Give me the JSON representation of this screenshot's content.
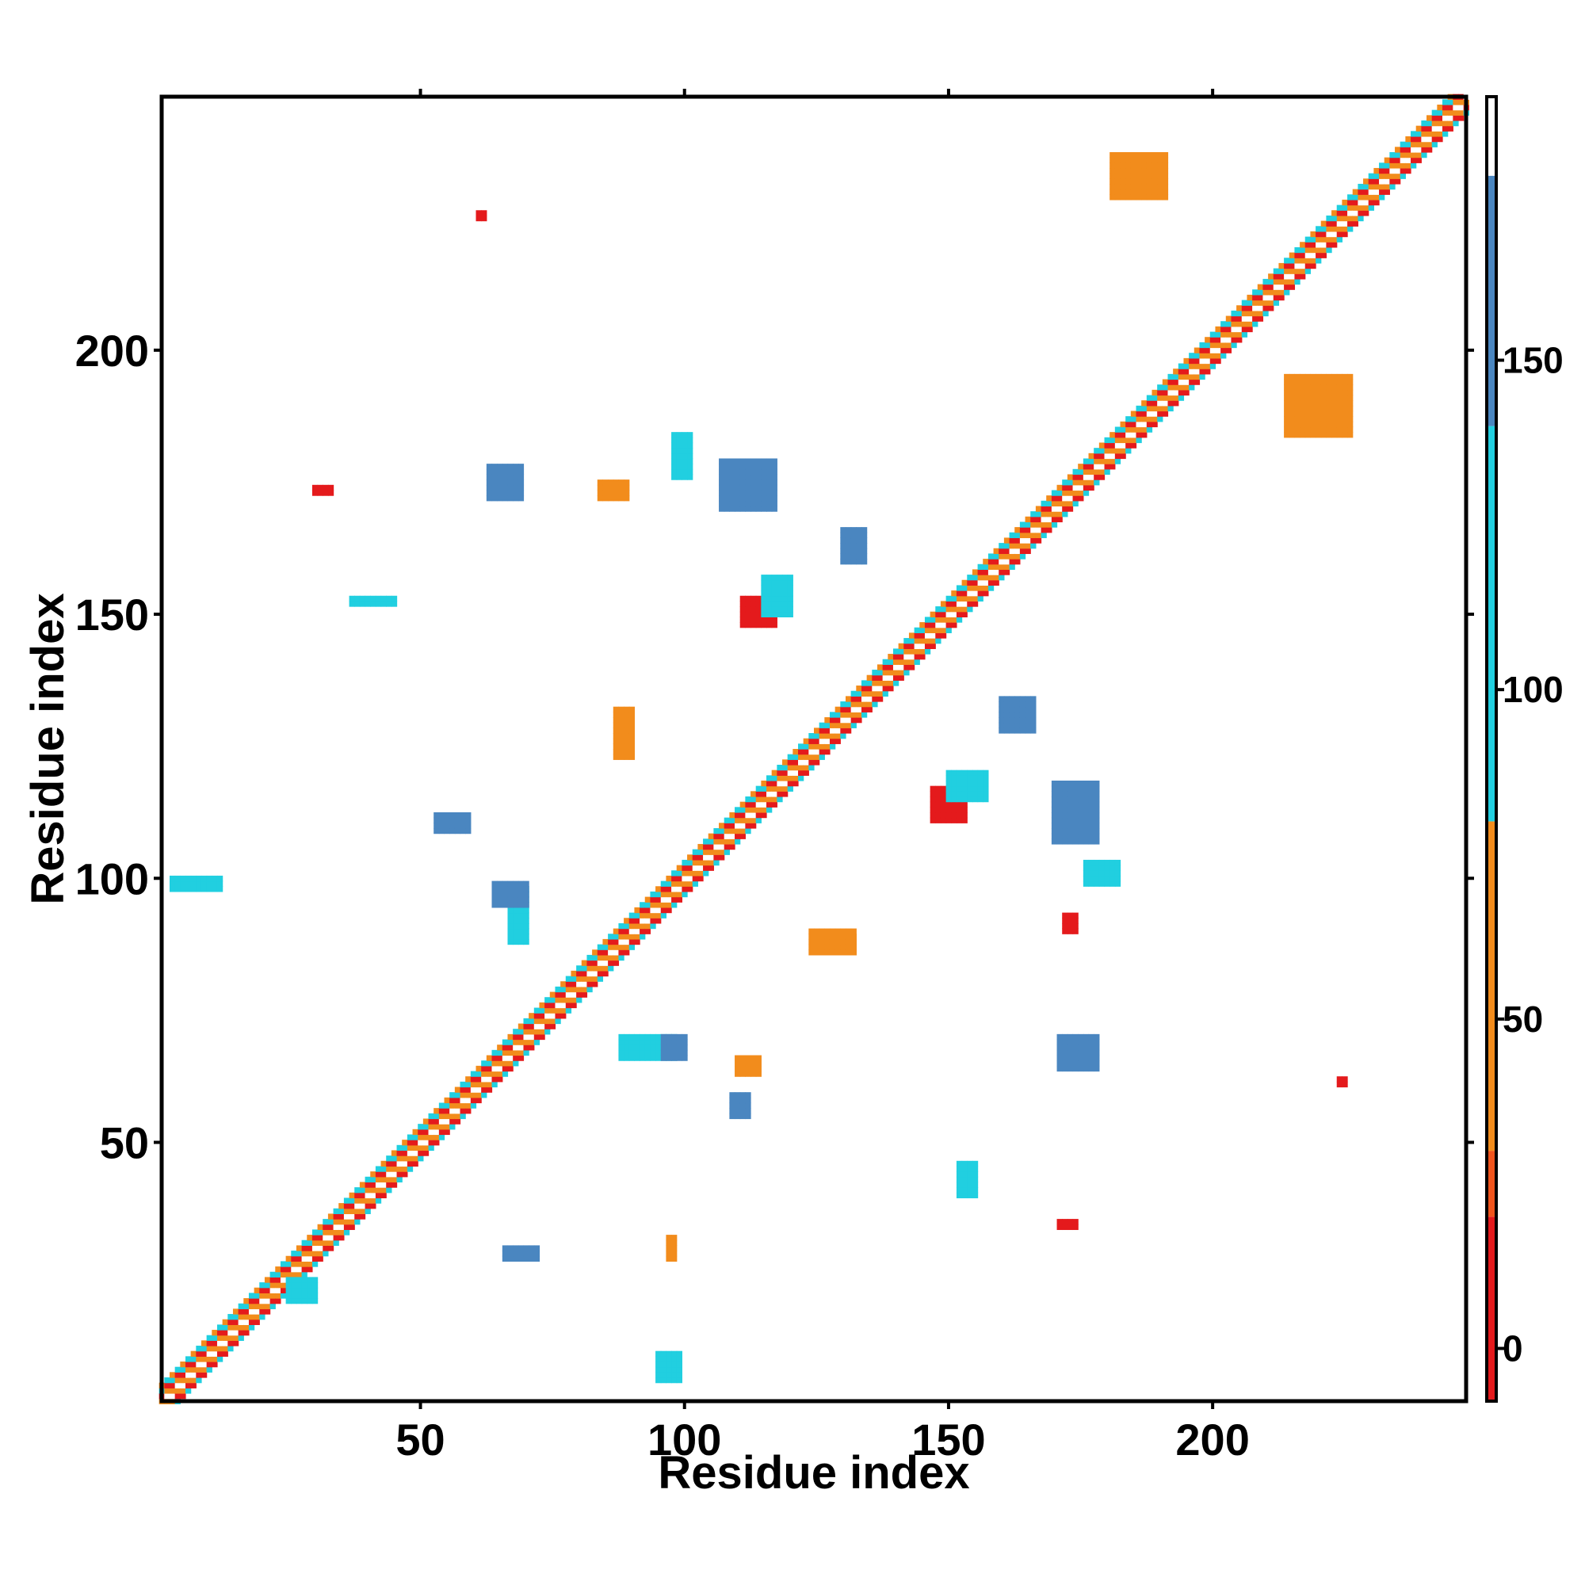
{
  "chart_data": {
    "type": "heatmap",
    "title": "",
    "xlabel": "Residue index",
    "ylabel": "Residue index",
    "xlim": [
      1,
      248
    ],
    "ylim": [
      1,
      248
    ],
    "x_ticks": [
      50,
      100,
      150,
      200
    ],
    "y_ticks": [
      50,
      100,
      150,
      200
    ],
    "x_tick_labels": [
      "50",
      "100",
      "150",
      "200"
    ],
    "y_tick_labels": [
      "50",
      "100",
      "150",
      "200"
    ],
    "grid": false,
    "colorbar": {
      "range": [
        -8,
        190
      ],
      "ticks": [
        0,
        50,
        100,
        150
      ],
      "tick_labels": [
        "0",
        "50",
        "100",
        "150"
      ],
      "segments": [
        {
          "from": -8,
          "to": 20,
          "color": "#e41a1c"
        },
        {
          "from": 20,
          "to": 30,
          "color": "#f0541c"
        },
        {
          "from": 30,
          "to": 80,
          "color": "#f28c1c"
        },
        {
          "from": 80,
          "to": 140,
          "color": "#21cfe0"
        },
        {
          "from": 140,
          "to": 178,
          "color": "#4a86c0"
        },
        {
          "from": 178,
          "to": 190,
          "color": "#ffffff"
        }
      ]
    },
    "diagonal_band": {
      "start": 1,
      "end": 248,
      "color_cycle": [
        "#ffffff",
        "#f28c1c",
        "#e41a1c",
        "#21cfe0",
        "#f28c1c"
      ]
    },
    "regions": [
      {
        "x": [
          111,
          117
        ],
        "y": [
          148,
          153
        ],
        "value": 5,
        "color": "#e41a1c"
      },
      {
        "x": [
          147,
          153
        ],
        "y": [
          111,
          117
        ],
        "value": 5,
        "color": "#e41a1c"
      },
      {
        "x": [
          107,
          117
        ],
        "y": [
          170,
          179
        ],
        "value": 160,
        "color": "#4a86c0"
      },
      {
        "x": [
          170,
          178
        ],
        "y": [
          107,
          118
        ],
        "value": 160,
        "color": "#4a86c0"
      },
      {
        "x": [
          63,
          69
        ],
        "y": [
          172,
          178
        ],
        "value": 160,
        "color": "#4a86c0"
      },
      {
        "x": [
          171,
          178
        ],
        "y": [
          64,
          70
        ],
        "value": 160,
        "color": "#4a86c0"
      },
      {
        "x": [
          115,
          120
        ],
        "y": [
          150,
          157
        ],
        "value": 110,
        "color": "#21cfe0"
      },
      {
        "x": [
          150,
          157
        ],
        "y": [
          115,
          120
        ],
        "value": 110,
        "color": "#21cfe0"
      },
      {
        "x": [
          67,
          70
        ],
        "y": [
          88,
          98
        ],
        "value": 110,
        "color": "#21cfe0"
      },
      {
        "x": [
          88,
          98
        ],
        "y": [
          66,
          70
        ],
        "value": 110,
        "color": "#21cfe0"
      },
      {
        "x": [
          181,
          191
        ],
        "y": [
          229,
          237
        ],
        "value": 50,
        "color": "#f28c1c"
      },
      {
        "x": [
          214,
          226
        ],
        "y": [
          184,
          195
        ],
        "value": 50,
        "color": "#f28c1c"
      },
      {
        "x": [
          87,
          90
        ],
        "y": [
          123,
          132
        ],
        "value": 50,
        "color": "#f28c1c"
      },
      {
        "x": [
          124,
          132
        ],
        "y": [
          86,
          90
        ],
        "value": 50,
        "color": "#f28c1c"
      },
      {
        "x": [
          172,
          174
        ],
        "y": [
          90,
          93
        ],
        "value": 10,
        "color": "#e41a1c"
      },
      {
        "x": [
          30,
          33
        ],
        "y": [
          173,
          174
        ],
        "value": 10,
        "color": "#e41a1c"
      },
      {
        "x": [
          61,
          62
        ],
        "y": [
          225,
          226
        ],
        "value": 10,
        "color": "#e41a1c"
      },
      {
        "x": [
          171,
          174
        ],
        "y": [
          34,
          35
        ],
        "value": 10,
        "color": "#e41a1c"
      },
      {
        "x": [
          224,
          225
        ],
        "y": [
          61,
          62
        ],
        "value": 10,
        "color": "#e41a1c"
      },
      {
        "x": [
          37,
          45
        ],
        "y": [
          152,
          153
        ],
        "value": 110,
        "color": "#21cfe0"
      },
      {
        "x": [
          152,
          155
        ],
        "y": [
          40,
          46
        ],
        "value": 110,
        "color": "#21cfe0"
      },
      {
        "x": [
          98,
          101
        ],
        "y": [
          176,
          184
        ],
        "value": 110,
        "color": "#21cfe0"
      },
      {
        "x": [
          176,
          182
        ],
        "y": [
          99,
          103
        ],
        "value": 110,
        "color": "#21cfe0"
      },
      {
        "x": [
          96,
          100
        ],
        "y": [
          66,
          70
        ],
        "value": 160,
        "color": "#4a86c0"
      },
      {
        "x": [
          64,
          70
        ],
        "y": [
          95,
          99
        ],
        "value": 160,
        "color": "#4a86c0"
      },
      {
        "x": [
          109,
          112
        ],
        "y": [
          55,
          59
        ],
        "value": 160,
        "color": "#4a86c0"
      },
      {
        "x": [
          53,
          59
        ],
        "y": [
          109,
          112
        ],
        "value": 160,
        "color": "#4a86c0"
      },
      {
        "x": [
          126,
          132
        ],
        "y": [
          86,
          89
        ],
        "value": 50,
        "color": "#f28c1c"
      },
      {
        "x": [
          110,
          114
        ],
        "y": [
          63,
          66
        ],
        "value": 50,
        "color": "#f28c1c"
      },
      {
        "x": [
          3,
          12
        ],
        "y": [
          98,
          100
        ],
        "value": 110,
        "color": "#21cfe0"
      },
      {
        "x": [
          25,
          30
        ],
        "y": [
          20,
          24
        ],
        "value": 110,
        "color": "#21cfe0"
      },
      {
        "x": [
          95,
          99
        ],
        "y": [
          5,
          10
        ],
        "value": 110,
        "color": "#21cfe0"
      },
      {
        "x": [
          66,
          72
        ],
        "y": [
          28,
          30
        ],
        "value": 160,
        "color": "#4a86c0"
      },
      {
        "x": [
          97,
          98
        ],
        "y": [
          28,
          32
        ],
        "value": 50,
        "color": "#f28c1c"
      },
      {
        "x": [
          84,
          89
        ],
        "y": [
          172,
          175
        ],
        "value": 50,
        "color": "#f28c1c"
      },
      {
        "x": [
          130,
          134
        ],
        "y": [
          160,
          166
        ],
        "value": 160,
        "color": "#4a86c0"
      },
      {
        "x": [
          160,
          166
        ],
        "y": [
          128,
          134
        ],
        "value": 160,
        "color": "#4a86c0"
      }
    ]
  }
}
